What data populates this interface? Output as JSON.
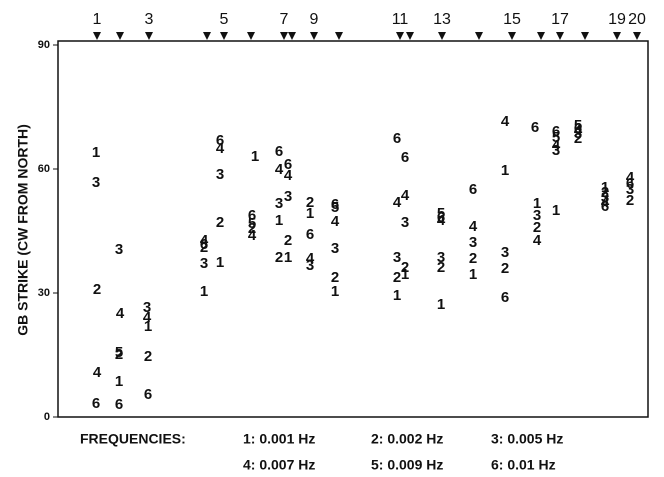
{
  "chart_data": {
    "type": "scatter",
    "y_label": "GB STRIKE (CW FROM NORTH)",
    "legend_title": "FREQUENCIES:",
    "ylim": [
      0,
      90
    ],
    "yticks": [
      0,
      30,
      60,
      90
    ],
    "xlim": [
      0,
      590
    ],
    "xticks": [
      {
        "value": 39,
        "label": "1"
      },
      {
        "value": 62,
        "label": null
      },
      {
        "value": 91,
        "label": "3"
      },
      {
        "value": 149,
        "label": null
      },
      {
        "value": 166,
        "label": "5"
      },
      {
        "value": 193,
        "label": null
      },
      {
        "value": 226,
        "label": "7"
      },
      {
        "value": 234,
        "label": null
      },
      {
        "value": 256,
        "label": "9"
      },
      {
        "value": 281,
        "label": null
      },
      {
        "value": 342,
        "label": "11"
      },
      {
        "value": 352,
        "label": null
      },
      {
        "value": 384,
        "label": "13"
      },
      {
        "value": 421,
        "label": null
      },
      {
        "value": 454,
        "label": "15"
      },
      {
        "value": 483,
        "label": null
      },
      {
        "value": 502,
        "label": "17"
      },
      {
        "value": 527,
        "label": null
      },
      {
        "value": 559,
        "label": "19"
      },
      {
        "value": 579,
        "label": "20"
      }
    ],
    "series": [
      {
        "name": "1: 0.001 Hz",
        "marker": "1",
        "x": [
          38,
          61,
          90,
          146,
          162,
          197,
          221,
          230,
          252,
          277,
          339,
          347,
          383,
          415,
          447,
          479,
          498,
          547
        ],
        "values": [
          63.9,
          8.5,
          21.8,
          30.2,
          37.3,
          62.9,
          47.4,
          38.5,
          49.1,
          30.2,
          29.3,
          34.4,
          27.1,
          34.4,
          59.5,
          51.5,
          49.8,
          55.4
        ]
      },
      {
        "name": "2: 0.002 Hz",
        "marker": "2",
        "x": [
          39,
          61,
          90,
          146,
          162,
          194,
          221,
          230,
          252,
          277,
          339,
          347,
          383,
          415,
          447,
          479,
          520,
          547,
          572
        ],
        "values": [
          30.7,
          15,
          14.5,
          40.9,
          46.9,
          45.5,
          38.5,
          42.6,
          51.8,
          33.6,
          33.6,
          36,
          36,
          38.2,
          35.8,
          45.7,
          67.3,
          54.2,
          52.3
        ]
      },
      {
        "name": "3: 0.005 Hz",
        "marker": "3",
        "x": [
          38,
          61,
          89,
          146,
          162,
          221,
          230,
          252,
          277,
          339,
          347,
          383,
          415,
          447,
          479,
          498,
          520,
          547,
          572
        ],
        "values": [
          56.6,
          40.4,
          26.4,
          37,
          58.5,
          51.5,
          53.2,
          36.5,
          40.6,
          38.5,
          46.9,
          38.5,
          42.1,
          39.7,
          48.6,
          64.3,
          68.5,
          53,
          54.9
        ]
      },
      {
        "name": "4: 0.007 Hz",
        "marker": "4",
        "x": [
          39,
          62,
          89,
          146,
          162,
          194,
          221,
          230,
          252,
          277,
          339,
          347,
          383,
          415,
          447,
          479,
          498,
          520,
          547,
          572
        ],
        "values": [
          10.6,
          24.9,
          24,
          42.6,
          64.8,
          43.8,
          59.8,
          58.3,
          38.2,
          47.2,
          51.8,
          53.5,
          47.4,
          46,
          71.4,
          42.6,
          65.6,
          69.2,
          51.8,
          57.8
        ]
      },
      {
        "name": "5: 0.009 Hz",
        "marker": "5",
        "x": [
          61,
          194,
          277,
          383,
          498,
          520
        ],
        "values": [
          15.5,
          46.7,
          50.5,
          49.1,
          67.5,
          70.4
        ]
      },
      {
        "name": "6: 0.01 Hz",
        "marker": "6",
        "x": [
          38,
          61,
          90,
          146,
          162,
          194,
          221,
          230,
          252,
          277,
          339,
          347,
          383,
          415,
          447,
          477,
          498,
          520,
          547,
          572
        ],
        "values": [
          3.1,
          2.9,
          5.3,
          41.6,
          66.8,
          48.6,
          64.1,
          61,
          44,
          51.3,
          67.3,
          62.7,
          48.1,
          54.9,
          28.8,
          69.9,
          68.9,
          69.7,
          50.8,
          56.4
        ]
      }
    ]
  }
}
